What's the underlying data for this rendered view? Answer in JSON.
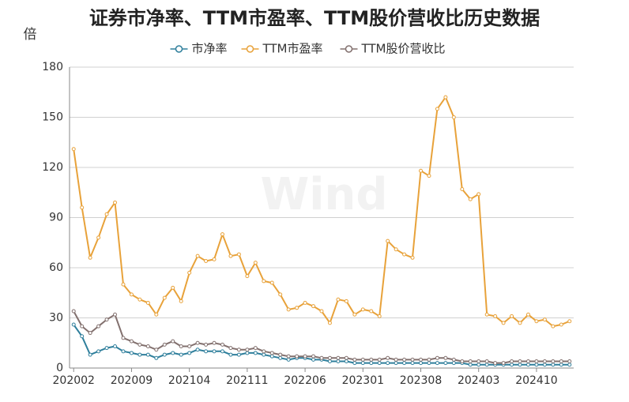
{
  "chart_data": {
    "type": "line",
    "title": "证券市净率、TTM市盈率、TTM股价营收比历史数据",
    "y_unit_label": "倍",
    "watermark": "Wind",
    "categories": [
      "202002",
      null,
      null,
      null,
      null,
      null,
      null,
      "202009",
      null,
      null,
      null,
      null,
      null,
      null,
      "202104",
      null,
      null,
      null,
      null,
      null,
      null,
      "202111",
      null,
      null,
      null,
      null,
      null,
      null,
      "202206",
      null,
      null,
      null,
      null,
      null,
      null,
      "202301",
      null,
      null,
      null,
      null,
      null,
      null,
      "202308",
      null,
      null,
      null,
      null,
      null,
      null,
      "202403",
      null,
      null,
      null,
      null,
      null,
      null,
      "202410",
      null,
      null,
      null,
      null
    ],
    "series": [
      {
        "name": "市净率",
        "color": "#2f7f9c",
        "values": [
          26,
          19,
          8,
          10,
          12,
          13,
          10,
          9,
          8,
          8,
          6,
          8,
          9,
          8,
          9,
          11,
          10,
          10,
          10,
          8,
          8,
          9,
          9,
          8,
          7,
          6,
          5,
          6,
          6,
          5,
          5,
          4,
          4,
          4,
          3,
          3,
          3,
          3,
          3,
          3,
          3,
          3,
          3,
          3,
          3,
          3,
          3,
          3,
          2,
          2,
          2,
          2,
          2,
          2,
          2,
          2,
          2,
          2,
          2,
          2,
          2
        ]
      },
      {
        "name": "TTM市盈率",
        "color": "#e8a23a",
        "values": [
          131,
          96,
          66,
          78,
          92,
          99,
          50,
          44,
          41,
          39,
          32,
          42,
          48,
          40,
          57,
          67,
          64,
          65,
          80,
          67,
          68,
          55,
          63,
          52,
          51,
          44,
          35,
          36,
          39,
          37,
          34,
          27,
          41,
          40,
          32,
          35,
          34,
          31,
          76,
          71,
          68,
          66,
          118,
          115,
          155,
          162,
          150,
          107,
          101,
          104,
          32,
          31,
          27,
          31,
          27,
          32,
          28,
          29,
          25,
          26,
          28
        ]
      },
      {
        "name": "TTM股价营收比",
        "color": "#82706e",
        "values": [
          34,
          25,
          21,
          25,
          29,
          32,
          18,
          16,
          14,
          13,
          11,
          14,
          16,
          13,
          13,
          15,
          14,
          15,
          14,
          12,
          11,
          11,
          12,
          10,
          9,
          8,
          7,
          7,
          7,
          7,
          6,
          6,
          6,
          6,
          5,
          5,
          5,
          5,
          6,
          5,
          5,
          5,
          5,
          5,
          6,
          6,
          5,
          4,
          4,
          4,
          4,
          3,
          3,
          4,
          4,
          4,
          4,
          4,
          4,
          4,
          4
        ]
      }
    ],
    "ylim": [
      0,
      180
    ],
    "yticks": [
      0,
      30,
      60,
      90,
      120,
      150,
      180
    ],
    "grid": true,
    "legend": "top"
  }
}
